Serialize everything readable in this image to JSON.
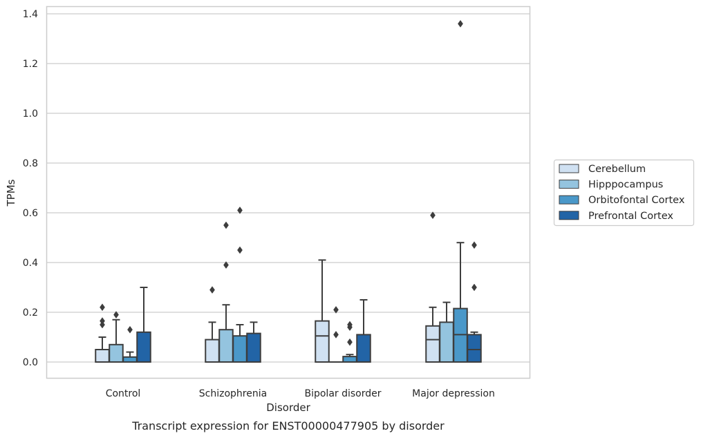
{
  "caption": "Transcript expression for ENST00000477905 by disorder",
  "colors": {
    "Cerebellum": "#d0e1f2",
    "Hipppocampus": "#94c4df",
    "Orbitofontal Cortex": "#4a98c9",
    "Prefrontal Cortex": "#2264a6",
    "grid": "#cccccc",
    "edge": "#3d3d3d"
  },
  "chart_data": {
    "type": "box",
    "xlabel": "Disorder",
    "ylabel": "TPMs",
    "ylim": [
      -0.065,
      1.43
    ],
    "yticks": [
      0.0,
      0.2,
      0.4,
      0.6,
      0.8,
      1.0,
      1.2,
      1.4
    ],
    "ytick_labels": [
      "0.0",
      "0.2",
      "0.4",
      "0.6",
      "0.8",
      "1.0",
      "1.2",
      "1.4"
    ],
    "grid": "horizontal",
    "legend_position": "right",
    "categories": [
      "Control",
      "Schizophrenia",
      "Bipolar disorder",
      "Major depression"
    ],
    "series": [
      {
        "name": "Cerebellum",
        "boxes": [
          {
            "whislo": 0.0,
            "q1": 0.0,
            "med": 0.0,
            "q3": 0.05,
            "whishi": 0.1,
            "fliers": [
              0.22,
              0.165,
              0.15
            ]
          },
          {
            "whislo": 0.0,
            "q1": 0.0,
            "med": 0.0,
            "q3": 0.09,
            "whishi": 0.16,
            "fliers": [
              0.29
            ]
          },
          {
            "whislo": 0.0,
            "q1": 0.0,
            "med": 0.105,
            "q3": 0.165,
            "whishi": 0.41,
            "fliers": []
          },
          {
            "whislo": 0.0,
            "q1": 0.0,
            "med": 0.09,
            "q3": 0.145,
            "whishi": 0.22,
            "fliers": [
              0.59
            ]
          }
        ]
      },
      {
        "name": "Hipppocampus",
        "boxes": [
          {
            "whislo": 0.0,
            "q1": 0.0,
            "med": 0.0,
            "q3": 0.07,
            "whishi": 0.17,
            "fliers": [
              0.19
            ]
          },
          {
            "whislo": 0.0,
            "q1": 0.0,
            "med": 0.0,
            "q3": 0.13,
            "whishi": 0.23,
            "fliers": [
              0.55,
              0.39
            ]
          },
          {
            "whislo": 0.0,
            "q1": 0.0,
            "med": 0.0,
            "q3": 0.0,
            "whishi": 0.0,
            "fliers": [
              0.21,
              0.11
            ]
          },
          {
            "whislo": 0.0,
            "q1": 0.0,
            "med": 0.0,
            "q3": 0.16,
            "whishi": 0.24,
            "fliers": []
          }
        ]
      },
      {
        "name": "Orbitofontal Cortex",
        "boxes": [
          {
            "whislo": 0.0,
            "q1": 0.0,
            "med": 0.0,
            "q3": 0.02,
            "whishi": 0.04,
            "fliers": [
              0.13
            ]
          },
          {
            "whislo": 0.0,
            "q1": 0.0,
            "med": 0.0,
            "q3": 0.105,
            "whishi": 0.15,
            "fliers": [
              0.61,
              0.45
            ]
          },
          {
            "whislo": 0.0,
            "q1": 0.0,
            "med": 0.0,
            "q3": 0.022,
            "whishi": 0.03,
            "fliers": [
              0.15,
              0.14,
              0.08
            ]
          },
          {
            "whislo": 0.0,
            "q1": 0.0,
            "med": 0.11,
            "q3": 0.215,
            "whishi": 0.48,
            "fliers": [
              1.36
            ]
          }
        ]
      },
      {
        "name": "Prefrontal Cortex",
        "boxes": [
          {
            "whislo": 0.0,
            "q1": 0.0,
            "med": 0.0,
            "q3": 0.12,
            "whishi": 0.3,
            "fliers": []
          },
          {
            "whislo": 0.0,
            "q1": 0.0,
            "med": 0.0,
            "q3": 0.115,
            "whishi": 0.16,
            "fliers": []
          },
          {
            "whislo": 0.0,
            "q1": 0.0,
            "med": 0.0,
            "q3": 0.11,
            "whishi": 0.25,
            "fliers": []
          },
          {
            "whislo": 0.0,
            "q1": 0.0,
            "med": 0.05,
            "q3": 0.11,
            "whishi": 0.12,
            "fliers": [
              0.47,
              0.3
            ]
          }
        ]
      }
    ]
  }
}
